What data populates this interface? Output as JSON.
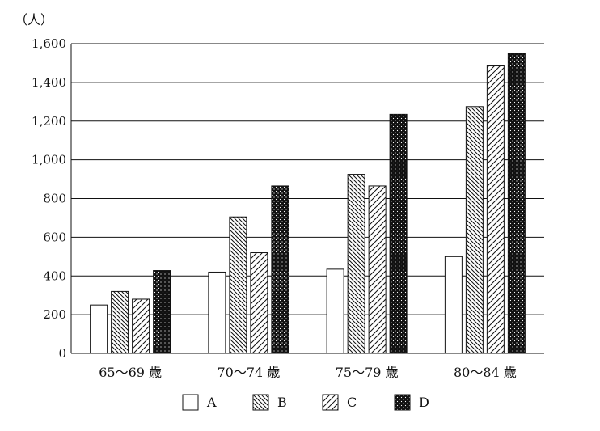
{
  "chart_data": {
    "type": "bar",
    "unit_label": "（人）",
    "categories": [
      "65～69 歳",
      "70～74 歳",
      "75～79 歳",
      "80～84 歳"
    ],
    "series": [
      {
        "name": "A",
        "values": [
          250,
          420,
          435,
          500
        ]
      },
      {
        "name": "B",
        "values": [
          320,
          705,
          925,
          1275
        ]
      },
      {
        "name": "C",
        "values": [
          280,
          520,
          865,
          1485
        ]
      },
      {
        "name": "D",
        "values": [
          428,
          865,
          1235,
          1548
        ]
      }
    ],
    "ylim": [
      0,
      1600
    ],
    "yticks": [
      {
        "value": 0,
        "label": "0"
      },
      {
        "value": 200,
        "label": "200"
      },
      {
        "value": 400,
        "label": "400"
      },
      {
        "value": 600,
        "label": "600"
      },
      {
        "value": 800,
        "label": "800"
      },
      {
        "value": 1000,
        "label": "1,000"
      },
      {
        "value": 1200,
        "label": "1,200"
      },
      {
        "value": 1400,
        "label": "1,400"
      },
      {
        "value": 1600,
        "label": "1,600"
      }
    ],
    "grid": true,
    "legend_position": "bottom",
    "series_fills": [
      "white",
      "back-diagonal-hatch",
      "forward-diagonal-hatch",
      "black-dotted"
    ]
  }
}
